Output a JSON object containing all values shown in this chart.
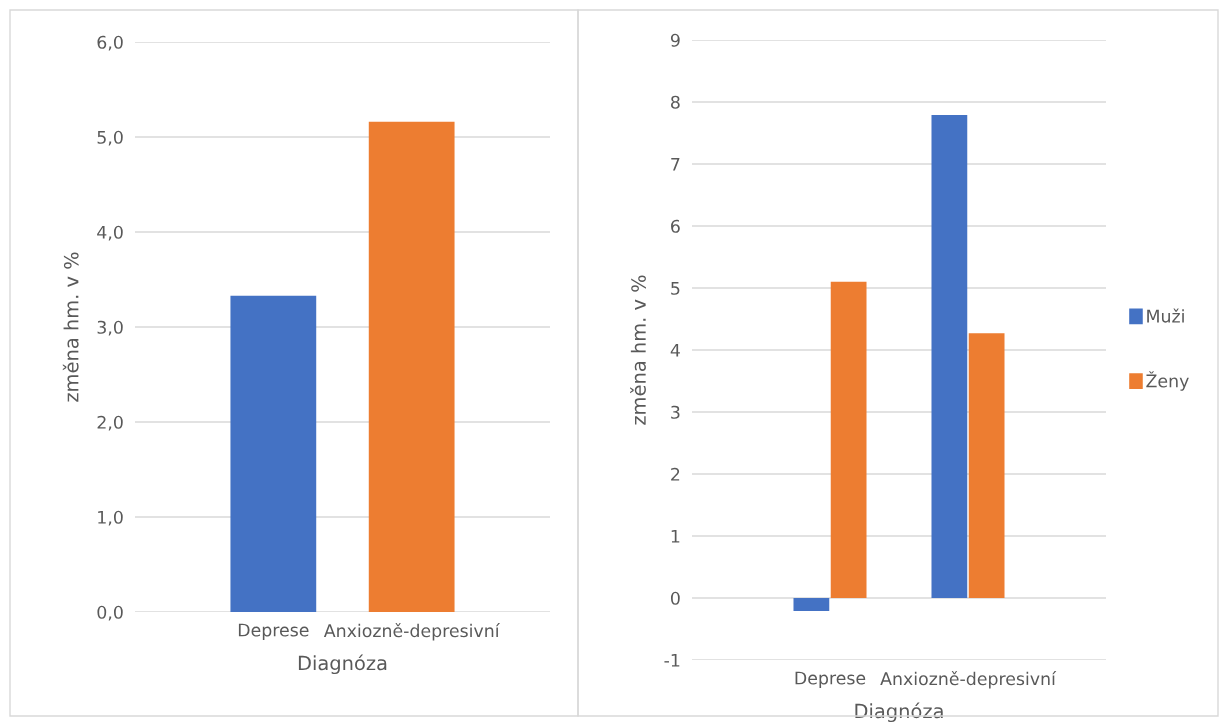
{
  "chart_data": [
    {
      "type": "bar",
      "xlabel": "Diagnóza",
      "ylabel": "změna hm. v %",
      "categories": [
        "Deprese",
        "Anxiozně-depresivní"
      ],
      "values": [
        3.33,
        5.16
      ],
      "colors": [
        "#4472c4",
        "#ed7d31"
      ],
      "ylim": [
        0,
        6
      ],
      "yticks": [
        {
          "value": 0,
          "label": "0,0"
        },
        {
          "value": 1,
          "label": "1,0"
        },
        {
          "value": 2,
          "label": "2,0"
        },
        {
          "value": 3,
          "label": "3,0"
        },
        {
          "value": 4,
          "label": "4,0"
        },
        {
          "value": 5,
          "label": "5,0"
        },
        {
          "value": 6,
          "label": "6,0"
        }
      ],
      "grid": "y",
      "legend": false
    },
    {
      "type": "bar",
      "xlabel": "Diagnóza",
      "ylabel": "změna hm. v %",
      "categories": [
        "Deprese",
        "Anxiozně-depresivní"
      ],
      "series": [
        {
          "name": "Muži",
          "color": "#4472c4",
          "values": [
            -0.21,
            7.79
          ]
        },
        {
          "name": "Ženy",
          "color": "#ed7d31",
          "values": [
            5.1,
            4.27
          ]
        }
      ],
      "ylim": [
        -1,
        9
      ],
      "yticks": [
        -1,
        0,
        1,
        2,
        3,
        4,
        5,
        6,
        7,
        8,
        9
      ],
      "grid": "y",
      "legend": "right"
    }
  ]
}
